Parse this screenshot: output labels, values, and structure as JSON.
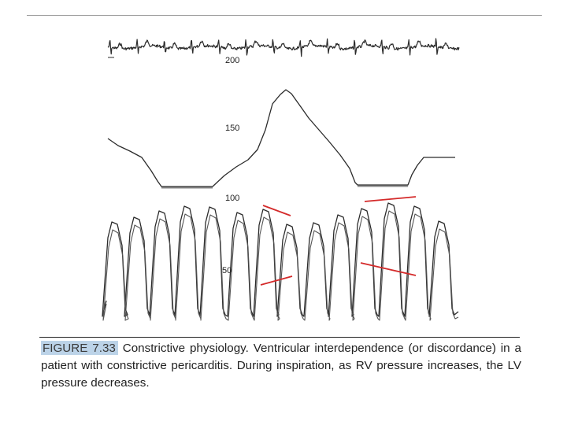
{
  "figure": {
    "label": "FIGURE 7.33",
    "caption_lines": [
      "Constrictive physiology. Ventricular interdependence (or discordance) in",
      "a patient with constrictive pericarditis. During inspiration, as RV pressure increases,",
      "the LV pressure decreases."
    ],
    "tick_labels": [
      "200",
      "150",
      "100",
      "50"
    ],
    "colors": {
      "trace": "#2b2b2b",
      "annotation": "#d42a2a",
      "label_highlight": "#bcd3e8"
    }
  }
}
